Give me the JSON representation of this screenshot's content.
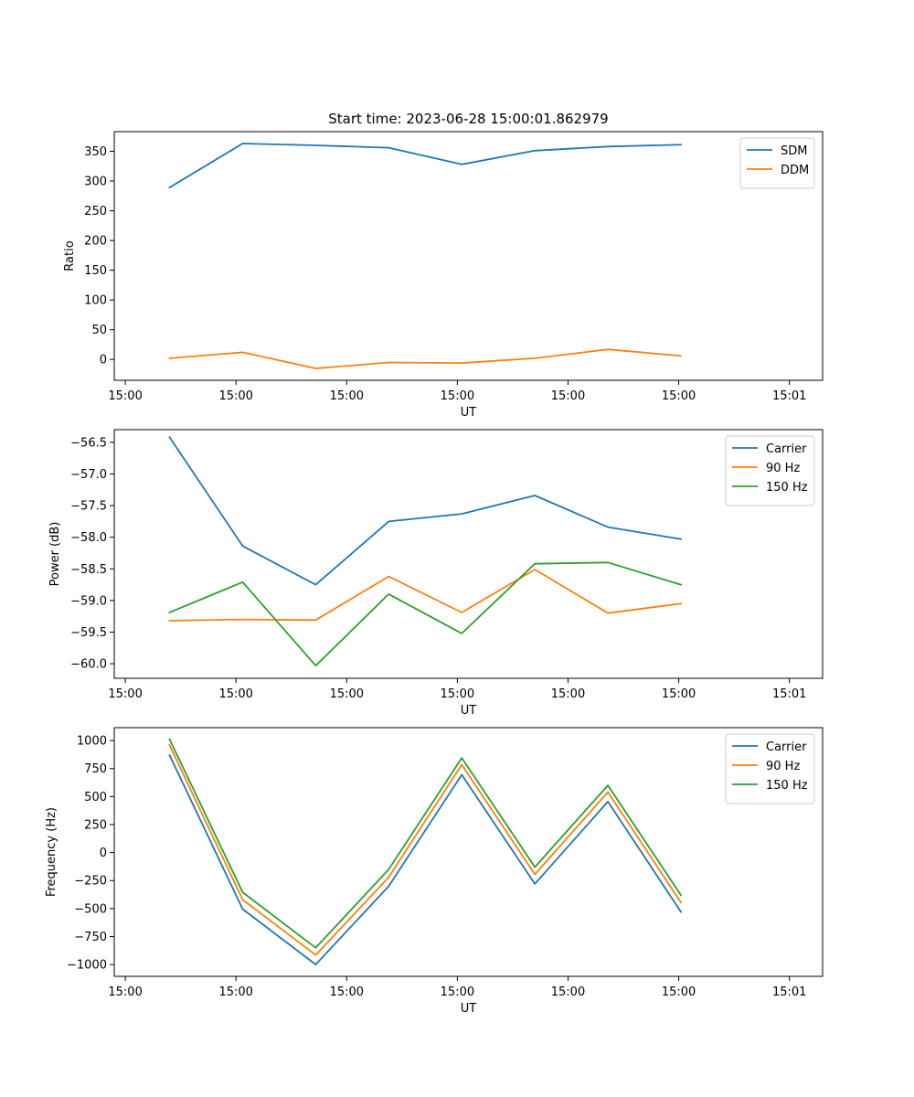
{
  "figure_title": "Start time: 2023-06-28 15:00:01.862979",
  "chart_data": [
    {
      "type": "line",
      "title": "Start time: 2023-06-28 15:00:01.862979",
      "xlabel": "UT",
      "ylabel": "Ratio",
      "x": [
        "15:00:01.8",
        "15:00:01.9",
        "15:00:02.0",
        "15:00:02.1",
        "15:00:02.2",
        "15:00:02.3",
        "15:00:02.4",
        "15:00:02.5"
      ],
      "xlim": [
        -0.025,
        0.295
      ],
      "x_ticks": [
        -0.02,
        0.03,
        0.08,
        0.13,
        0.18,
        0.23,
        0.28
      ],
      "x_tick_labels": [
        "15:00",
        "15:00",
        "15:00",
        "15:00",
        "15:00",
        "15:00",
        "15:01"
      ],
      "ylim": [
        -35,
        383
      ],
      "y_ticks": [
        0,
        50,
        100,
        150,
        200,
        250,
        300,
        350
      ],
      "y_tick_labels": [
        "0",
        "50",
        "100",
        "150",
        "200",
        "250",
        "300",
        "350"
      ],
      "legend_position": "upper right",
      "series": [
        {
          "name": "SDM",
          "color": "#1f77b4",
          "values": [
            289,
            363,
            360,
            356,
            328,
            351,
            358,
            361
          ]
        },
        {
          "name": "DDM",
          "color": "#ff7f0e",
          "values": [
            2,
            12,
            -15,
            -5,
            -6,
            2,
            17,
            6
          ]
        }
      ]
    },
    {
      "type": "line",
      "xlabel": "UT",
      "ylabel": "Power (dB)",
      "xlim": [
        -0.025,
        0.295
      ],
      "x_ticks": [
        -0.02,
        0.03,
        0.08,
        0.13,
        0.18,
        0.23,
        0.28
      ],
      "x_tick_labels": [
        "15:00",
        "15:00",
        "15:00",
        "15:00",
        "15:00",
        "15:00",
        "15:01"
      ],
      "ylim": [
        -60.23,
        -56.3
      ],
      "y_ticks": [
        -60.0,
        -59.5,
        -59.0,
        -58.5,
        -58.0,
        -57.5,
        -57.0,
        -56.5
      ],
      "y_tick_labels": [
        "−60.0",
        "−59.5",
        "−59.0",
        "−58.5",
        "−58.0",
        "−57.5",
        "−57.0",
        "−56.5"
      ],
      "legend_position": "upper right",
      "series": [
        {
          "name": "Carrier",
          "color": "#1f77b4",
          "values": [
            -56.42,
            -58.14,
            -58.75,
            -57.75,
            -57.63,
            -57.34,
            -57.84,
            -58.03
          ]
        },
        {
          "name": "90 Hz",
          "color": "#ff7f0e",
          "values": [
            -59.32,
            -59.3,
            -59.31,
            -58.62,
            -59.19,
            -58.51,
            -59.2,
            -59.05
          ]
        },
        {
          "name": "150 Hz",
          "color": "#2ca02c",
          "values": [
            -59.19,
            -58.71,
            -60.03,
            -58.9,
            -59.52,
            -58.42,
            -58.4,
            -58.75
          ]
        }
      ]
    },
    {
      "type": "line",
      "xlabel": "UT",
      "ylabel": "Frequency (Hz)",
      "xlim": [
        -0.025,
        0.295
      ],
      "x_ticks": [
        -0.02,
        0.03,
        0.08,
        0.13,
        0.18,
        0.23,
        0.28
      ],
      "x_tick_labels": [
        "15:00",
        "15:00",
        "15:00",
        "15:00",
        "15:00",
        "15:00",
        "15:01"
      ],
      "ylim": [
        -1105,
        1115
      ],
      "y_ticks": [
        -1000,
        -750,
        -500,
        -250,
        0,
        250,
        500,
        750,
        1000
      ],
      "y_tick_labels": [
        "−1000",
        "−750",
        "−500",
        "−250",
        "0",
        "250",
        "500",
        "750",
        "1000"
      ],
      "legend_position": "upper right",
      "series": [
        {
          "name": "Carrier",
          "color": "#1f77b4",
          "values": [
            870,
            -505,
            -1000,
            -300,
            695,
            -280,
            455,
            -530
          ]
        },
        {
          "name": "90 Hz",
          "color": "#ff7f0e",
          "values": [
            960,
            -420,
            -915,
            -220,
            785,
            -195,
            540,
            -445
          ]
        },
        {
          "name": "150 Hz",
          "color": "#2ca02c",
          "values": [
            1012,
            -355,
            -850,
            -150,
            845,
            -130,
            600,
            -380
          ]
        }
      ]
    }
  ]
}
